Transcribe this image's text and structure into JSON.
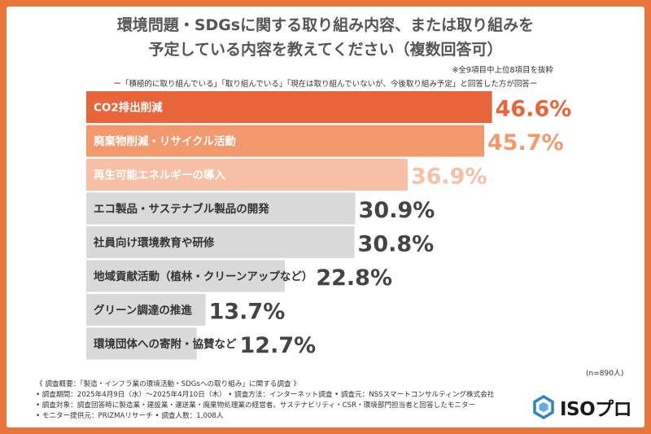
{
  "title_line1": "環境問題・SDGsに関する取り組み内容、または取り組みを",
  "title_line2": "予定している内容を教えてください（複数回答可）",
  "note": "※全9項目中上位8項目を抜粋",
  "subtitle": "ー「積極的に取り組んでいる」「取り組んでいる」「現在は取り組んでいないが、今後取り組み予定」と回答した方が回答ー",
  "sample_size": "(n=890人)",
  "survey": {
    "line1": "《 調査概要：「製造・インフラ業の環境活動・SDGsへの取り組み」に関する調査 》",
    "line2": "• 調査期間：2025年4月9日（水）〜2025年4月10日（木）  • 調査方法：インターネット調査  • 調査元：NSSスマートコンサルティング株式会社",
    "line3": "• 調査対象：調査回答時に製造業・建設業・運送業・廃棄物処理業の経営者、サステナビリティ・CSR・環境部門担当者と回答したモニター",
    "line4": "• モニター提供元：PRIZMAリサーチ        • 調査人数：1,008人"
  },
  "logo": {
    "text": "ISOプロ",
    "icon": "hexagon-cube-icon",
    "color": "#2e86c1"
  },
  "colors": {
    "frame": "#e8743a",
    "bar_top1": "#e8643a",
    "bar_top2": "#f29a6e",
    "bar_top3": "#f7c0a6",
    "bar_rest": "#d9d9d9",
    "value_top1": "#e8643a",
    "value_top2": "#f29a6e",
    "value_top3": "#f7c0a6",
    "value_rest": "#444444"
  },
  "chart_data": {
    "type": "bar",
    "orientation": "horizontal",
    "categories": [
      "CO2排出削減",
      "廃棄物削減・リサイクル活動",
      "再生可能エネルギーの導入",
      "エコ製品・サステナブル製品の開発",
      "社員向け環境教育や研修",
      "地域貢献活動（植林・クリーンアップなど）",
      "グリーン調達の推進",
      "環境団体への寄附・協賛など"
    ],
    "values": [
      46.6,
      45.7,
      36.9,
      30.9,
      30.8,
      22.8,
      13.7,
      12.7
    ],
    "value_labels": [
      "46.6%",
      "45.7%",
      "36.9%",
      "30.9%",
      "30.8%",
      "22.8%",
      "13.7%",
      "12.7%"
    ],
    "unit": "%",
    "xlim": [
      0,
      50
    ]
  }
}
